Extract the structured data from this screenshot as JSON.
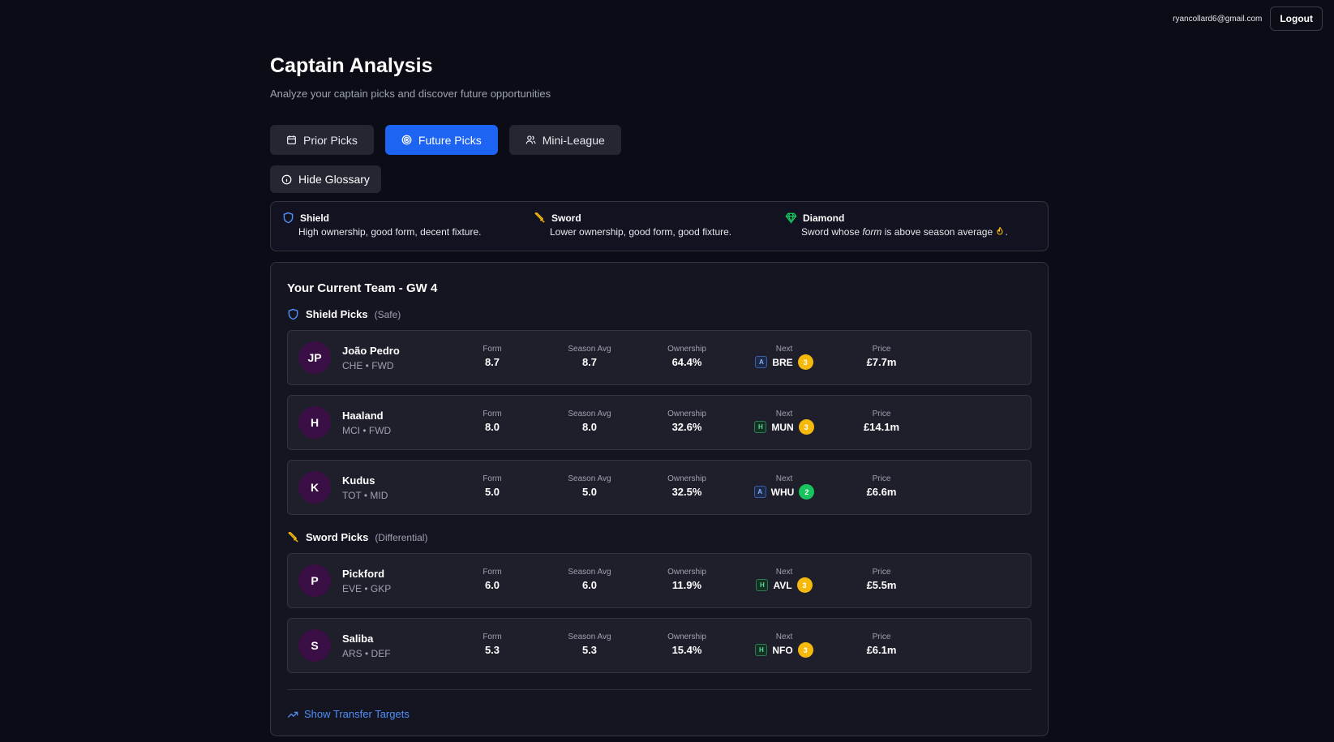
{
  "header": {
    "user_email": "ryancollard6@gmail.com",
    "logout_label": "Logout"
  },
  "page": {
    "title": "Captain Analysis",
    "subtitle": "Analyze your captain picks and discover future opportunities"
  },
  "tabs": [
    {
      "label": "Prior Picks",
      "icon": "calendar-icon",
      "active": false
    },
    {
      "label": "Future Picks",
      "icon": "target-icon",
      "active": true
    },
    {
      "label": "Mini-League",
      "icon": "users-icon",
      "active": false
    }
  ],
  "glossary_toggle": {
    "label": "Hide Glossary",
    "icon": "info-icon"
  },
  "glossary": [
    {
      "title": "Shield",
      "icon": "shield-icon",
      "desc": "High ownership, good form, decent fixture."
    },
    {
      "title": "Sword",
      "icon": "sword-icon",
      "desc": "Lower ownership, good form, good fixture."
    },
    {
      "title": "Diamond",
      "icon": "diamond-icon",
      "desc_pre": "Sword whose ",
      "desc_em": "form",
      "desc_post": " is above season average",
      "desc_end": "."
    }
  ],
  "team": {
    "title": "Your Current Team - GW 4",
    "labels": {
      "form": "Form",
      "avg": "Season Avg",
      "own": "Ownership",
      "next": "Next",
      "price": "Price"
    },
    "shield_section": {
      "title": "Shield Picks",
      "sub": "(Safe)"
    },
    "sword_section": {
      "title": "Sword Picks",
      "sub": "(Differential)"
    },
    "shield_players": [
      {
        "initials": "JP",
        "name": "João Pedro",
        "meta": "CHE • FWD",
        "form": "8.7",
        "avg": "8.7",
        "own": "64.4%",
        "venue": "A",
        "opp": "BRE",
        "fdr": "3",
        "price": "£7.7m"
      },
      {
        "initials": "H",
        "name": "Haaland",
        "meta": "MCI • FWD",
        "form": "8.0",
        "avg": "8.0",
        "own": "32.6%",
        "venue": "H",
        "opp": "MUN",
        "fdr": "3",
        "price": "£14.1m"
      },
      {
        "initials": "K",
        "name": "Kudus",
        "meta": "TOT • MID",
        "form": "5.0",
        "avg": "5.0",
        "own": "32.5%",
        "venue": "A",
        "opp": "WHU",
        "fdr": "2",
        "price": "£6.6m"
      }
    ],
    "sword_players": [
      {
        "initials": "P",
        "name": "Pickford",
        "meta": "EVE • GKP",
        "form": "6.0",
        "avg": "6.0",
        "own": "11.9%",
        "venue": "H",
        "opp": "AVL",
        "fdr": "3",
        "price": "£5.5m"
      },
      {
        "initials": "S",
        "name": "Saliba",
        "meta": "ARS • DEF",
        "form": "5.3",
        "avg": "5.3",
        "own": "15.4%",
        "venue": "H",
        "opp": "NFO",
        "fdr": "3",
        "price": "£6.1m"
      }
    ],
    "transfer_link": "Show Transfer Targets"
  },
  "colors": {
    "accent": "#1d64f2",
    "link": "#4f8ef7",
    "shield": "#4f8ef7",
    "sword": "#f5b90c",
    "diamond": "#18c45e",
    "fdr3": "#f5b90c",
    "fdr2": "#18c45e"
  }
}
